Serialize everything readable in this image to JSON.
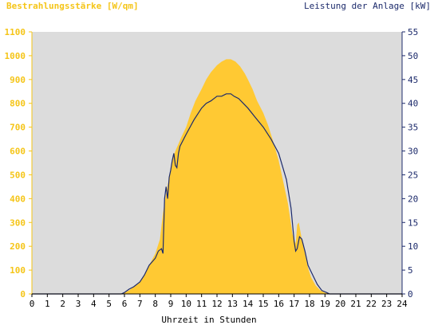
{
  "chart_data": {
    "type": "area",
    "left_axis_title": "Bestrahlungsstärke [W/qm]",
    "right_axis_title": "Leistung der Anlage [kW]",
    "xlabel": "Uhrzeit in Stunden",
    "colors": {
      "irradiance": "#ffc933",
      "power": "#1c2a6b",
      "plot_bg": "#dcdcdc",
      "left_axis": "#f5c518",
      "right_axis": "#1c2a6b"
    },
    "xlim": [
      0,
      24
    ],
    "ylim_left": [
      0,
      1100
    ],
    "ylim_right": [
      0,
      55
    ],
    "x_ticks": [
      "0",
      "1",
      "2",
      "3",
      "4",
      "5",
      "6",
      "7",
      "8",
      "9",
      "10",
      "11",
      "12",
      "13",
      "14",
      "15",
      "16",
      "17",
      "18",
      "19",
      "20",
      "21",
      "22",
      "23",
      "24"
    ],
    "y_left_ticks": [
      "0",
      "100",
      "200",
      "300",
      "400",
      "500",
      "600",
      "700",
      "800",
      "900",
      "1000",
      "1100"
    ],
    "y_right_ticks": [
      "0",
      "5",
      "10",
      "15",
      "20",
      "25",
      "30",
      "35",
      "40",
      "45",
      "50",
      "55"
    ],
    "grid": false,
    "series": [
      {
        "axis": "left",
        "x": [
          0,
          5.8,
          6,
          6.3,
          6.6,
          7,
          7.3,
          7.6,
          8,
          8.3,
          8.5,
          8.7,
          8.9,
          9.1,
          9.3,
          9.5,
          9.7,
          10,
          10.3,
          10.6,
          11,
          11.3,
          11.6,
          12,
          12.3,
          12.6,
          12.9,
          13.2,
          13.5,
          13.8,
          14,
          14.3,
          14.6,
          15,
          15.3,
          15.6,
          16,
          16.3,
          16.6,
          16.9,
          17.1,
          17.2,
          17.3,
          17.5,
          17.7,
          17.9,
          18.1,
          18.4,
          18.7,
          19,
          19.2,
          19.4,
          24
        ],
        "values": [
          0,
          0,
          5,
          15,
          30,
          50,
          80,
          120,
          170,
          230,
          340,
          420,
          490,
          560,
          600,
          630,
          660,
          700,
          760,
          810,
          860,
          900,
          930,
          960,
          975,
          985,
          985,
          975,
          955,
          925,
          900,
          860,
          810,
          760,
          710,
          650,
          560,
          470,
          380,
          250,
          210,
          290,
          300,
          230,
          170,
          110,
          70,
          35,
          15,
          5,
          2,
          0,
          0
        ]
      },
      {
        "axis": "right",
        "x": [
          0,
          5.8,
          6,
          6.3,
          6.6,
          7,
          7.3,
          7.6,
          8,
          8.2,
          8.4,
          8.5,
          8.6,
          8.7,
          8.8,
          8.9,
          9.0,
          9.1,
          9.2,
          9.3,
          9.4,
          9.5,
          9.6,
          10,
          10.5,
          11,
          11.3,
          11.6,
          12,
          12.3,
          12.6,
          12.9,
          13.1,
          13.4,
          13.7,
          14,
          14.5,
          15,
          15.5,
          16,
          16.5,
          16.8,
          17,
          17.1,
          17.2,
          17.35,
          17.5,
          17.7,
          17.9,
          18.2,
          18.5,
          18.8,
          19.1,
          19.3,
          24
        ],
        "values": [
          0,
          0,
          0.3,
          1.0,
          1.5,
          2.5,
          4.0,
          6.0,
          7.5,
          9.0,
          9.5,
          8.5,
          20.0,
          22.5,
          20.0,
          24.5,
          26.0,
          28.0,
          29.5,
          27.0,
          26.5,
          29.5,
          31.0,
          33.5,
          36.5,
          39.0,
          40.0,
          40.5,
          41.5,
          41.5,
          42.0,
          42.0,
          41.5,
          41.0,
          40.0,
          39.0,
          37.0,
          35.0,
          32.5,
          29.5,
          24.0,
          18.0,
          11.0,
          9.0,
          9.5,
          12.0,
          11.5,
          9.0,
          6.0,
          4.0,
          2.0,
          0.7,
          0.3,
          0,
          0
        ]
      }
    ]
  }
}
